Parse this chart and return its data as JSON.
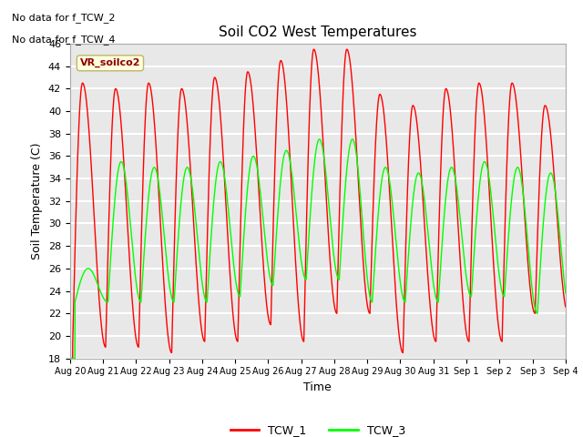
{
  "title": "Soil CO2 West Temperatures",
  "xlabel": "Time",
  "ylabel": "Soil Temperature (C)",
  "ylim": [
    18,
    46
  ],
  "background_color": "#e8e8e8",
  "grid_color": "white",
  "no_data_text": [
    "No data for f_TCW_2",
    "No data for f_TCW_4"
  ],
  "vr_label": "VR_soilco2",
  "legend_entries": [
    "TCW_1",
    "TCW_3"
  ],
  "legend_colors": [
    "red",
    "lime"
  ],
  "tcw1_color": "red",
  "tcw3_color": "lime",
  "x_tick_labels": [
    "Aug 20",
    "Aug 21",
    "Aug 22",
    "Aug 23",
    "Aug 24",
    "Aug 25",
    "Aug 26",
    "Aug 27",
    "Aug 28",
    "Aug 29",
    "Aug 30",
    "Aug 31",
    "Sep 1",
    "Sep 2",
    "Sep 3",
    "Sep 4"
  ],
  "tcw1_peaks": [
    42.5,
    42.0,
    42.5,
    42.0,
    43.0,
    43.5,
    44.5,
    45.5,
    45.5,
    41.5,
    40.5,
    42.0,
    42.5,
    42.5,
    40.5
  ],
  "tcw1_troughs": [
    19.0,
    19.0,
    19.0,
    18.5,
    19.5,
    19.5,
    21.0,
    19.5,
    22.0,
    22.0,
    18.5,
    19.5,
    19.5,
    19.5,
    22.0
  ],
  "tcw3_peaks": [
    26.0,
    35.5,
    35.0,
    35.0,
    35.5,
    36.0,
    36.5,
    37.5,
    37.5,
    35.0,
    34.5,
    35.0,
    35.5,
    35.0,
    34.5
  ],
  "tcw3_troughs": [
    23.0,
    23.0,
    23.0,
    23.0,
    23.0,
    23.5,
    24.5,
    25.0,
    25.0,
    23.0,
    23.0,
    23.0,
    23.5,
    23.5,
    22.0
  ]
}
